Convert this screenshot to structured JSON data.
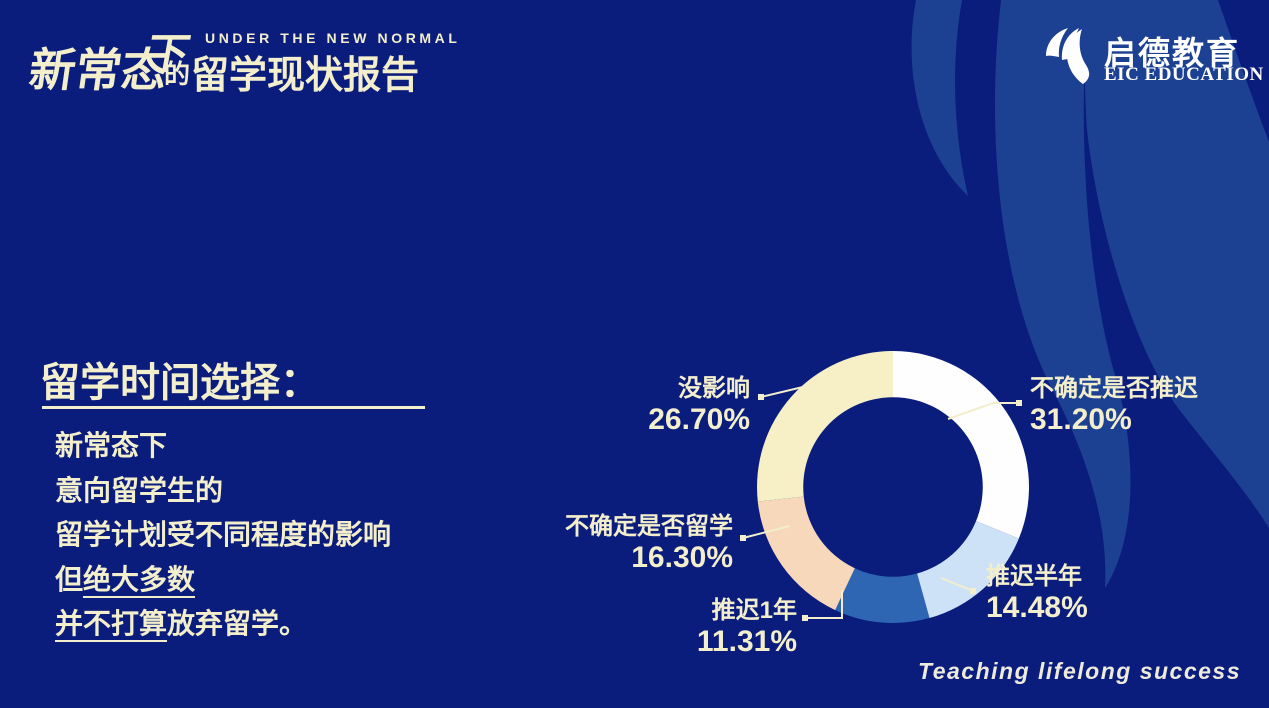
{
  "colors": {
    "background": "#0a1d7c",
    "swoosh": "#1c4193",
    "cream_text": "#f3eecb",
    "white": "#ffffff"
  },
  "header": {
    "brand": {
      "stylized_cn_main": "新常态",
      "stylized_cn_drop": "下",
      "tagline_en": "UNDER THE NEW NORMAL",
      "subtitle_prefix": "的",
      "subtitle_cn": "留学现状报告"
    },
    "logo": {
      "icon": "eic-drop-logo",
      "name_cn": "启德教育",
      "name_en": "EIC EDUCATION"
    }
  },
  "main": {
    "section_title": "留学时间选择：",
    "paragraph": [
      {
        "prefix": "新常态下",
        "underlined": "",
        "suffix": ""
      },
      {
        "prefix": "意向留学生的",
        "underlined": "",
        "suffix": ""
      },
      {
        "prefix": "留学计划受不同程度的影响",
        "underlined": "",
        "suffix": ""
      },
      {
        "prefix": "但",
        "underlined": "绝大多数",
        "suffix": ""
      },
      {
        "prefix": "",
        "underlined": "并不打算",
        "suffix": "放弃留学。"
      }
    ]
  },
  "chart_data": {
    "type": "pie",
    "variant": "donut",
    "start_angle_deg": 0,
    "direction": "clockwise",
    "legend_position": "callout-labels",
    "inner_radius_ratio": 0.66,
    "segments": [
      {
        "label": "不确定是否推迟",
        "value": 31.2,
        "display": "31.20%",
        "color": "#fefefe"
      },
      {
        "label": "推迟半年",
        "value": 14.48,
        "display": "14.48%",
        "color": "#cde2f6"
      },
      {
        "label": "推迟1年",
        "value": 11.31,
        "display": "11.31%",
        "color": "#2e66b4"
      },
      {
        "label": "不确定是否留学",
        "value": 16.3,
        "display": "16.30%",
        "color": "#f7d8bb"
      },
      {
        "label": "没影响",
        "value": 26.7,
        "display": "26.70%",
        "color": "#f7efc6"
      }
    ]
  },
  "footer": {
    "slogan": "Teaching lifelong success"
  }
}
